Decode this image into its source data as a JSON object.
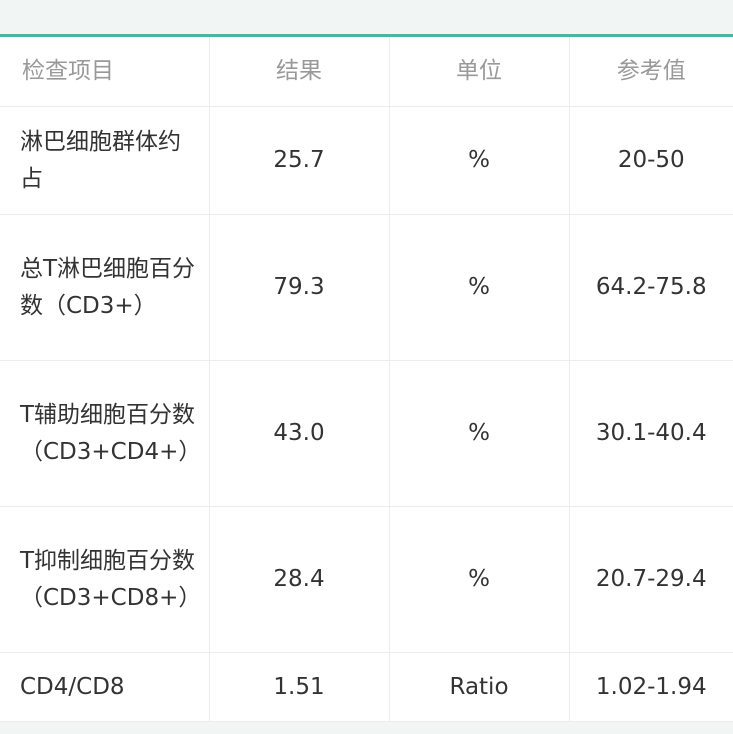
{
  "accent_color": "#4fb3a3",
  "table": {
    "headers": [
      "检查项目",
      "结果",
      "单位",
      "参考值"
    ],
    "rows": [
      {
        "item": "淋巴细胞群体约占",
        "result": "25.7",
        "unit": "%",
        "reference": "20-50"
      },
      {
        "item": "总T淋巴细胞百分数（CD3+）",
        "result": "79.3",
        "unit": "%",
        "reference": "64.2-75.8"
      },
      {
        "item": "T辅助细胞百分数（CD3+CD4+）",
        "result": "43.0",
        "unit": "%",
        "reference": "30.1-40.4"
      },
      {
        "item": "T抑制细胞百分数（CD3+CD8+）",
        "result": "28.4",
        "unit": "%",
        "reference": "20.7-29.4"
      },
      {
        "item": "CD4/CD8",
        "result": "1.51",
        "unit": "Ratio",
        "reference": "1.02-1.94"
      }
    ]
  }
}
